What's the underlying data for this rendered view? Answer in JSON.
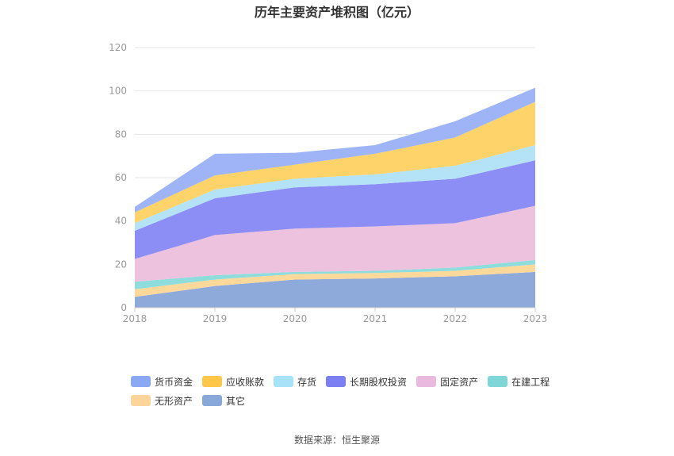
{
  "chart_data": {
    "type": "area",
    "stacked": true,
    "title": "历年主要资产堆积图（亿元）",
    "categories": [
      "2018",
      "2019",
      "2020",
      "2021",
      "2022",
      "2023"
    ],
    "ylim": [
      0,
      120
    ],
    "yticks": [
      0,
      20,
      40,
      60,
      80,
      100,
      120
    ],
    "grid": true,
    "series": [
      {
        "name": "其它",
        "color": "#8eaadb",
        "values": [
          5,
          10,
          13,
          13.5,
          14.5,
          16.5
        ]
      },
      {
        "name": "无形资产",
        "color": "#fdd89b",
        "values": [
          3.5,
          3,
          2.5,
          2.5,
          2.5,
          3.5
        ]
      },
      {
        "name": "在建工程",
        "color": "#8fdcdc",
        "values": [
          3.5,
          2,
          1,
          1,
          1.5,
          2
        ]
      },
      {
        "name": "固定资产",
        "color": "#ecc2df",
        "values": [
          10.5,
          18.5,
          20,
          20.5,
          20.5,
          25
        ]
      },
      {
        "name": "长期股权投资",
        "color": "#8c8ef5",
        "values": [
          13,
          17,
          19,
          19.5,
          20.5,
          21
        ]
      },
      {
        "name": "存货",
        "color": "#b4e3f7",
        "values": [
          3.5,
          4,
          4,
          4.5,
          6,
          7
        ]
      },
      {
        "name": "应收账款",
        "color": "#fed36a",
        "values": [
          5,
          6.5,
          6.5,
          9.5,
          13,
          20
        ]
      },
      {
        "name": "货币资金",
        "color": "#9eb4f6",
        "values": [
          2.5,
          10,
          5.5,
          4,
          7.5,
          6.5
        ]
      }
    ]
  },
  "legend": [
    {
      "name": "货币资金",
      "color": "#8ba8f5"
    },
    {
      "name": "应收账款",
      "color": "#fec749"
    },
    {
      "name": "存货",
      "color": "#a6e2f8"
    },
    {
      "name": "长期股权投资",
      "color": "#7b7ff1"
    },
    {
      "name": "固定资产",
      "color": "#e9b9de"
    },
    {
      "name": "在建工程",
      "color": "#7fd6d6"
    },
    {
      "name": "无形资产",
      "color": "#fdd49a"
    },
    {
      "name": "其它",
      "color": "#88a8da"
    }
  ],
  "source": "数据来源：恒生聚源"
}
